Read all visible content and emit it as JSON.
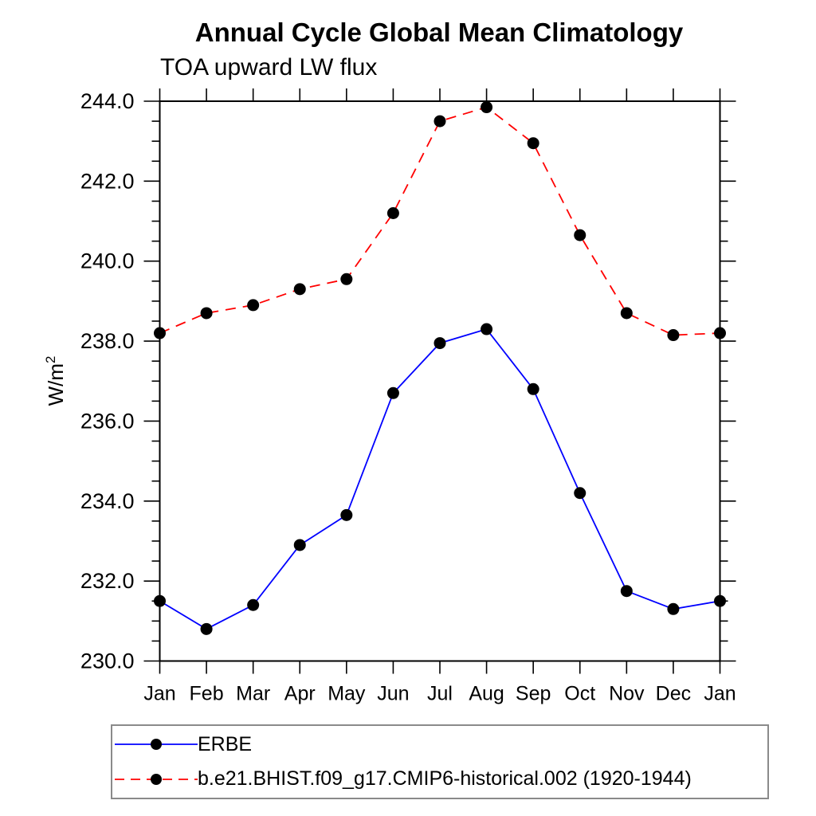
{
  "chart_data": {
    "type": "line",
    "title": "Annual Cycle Global Mean Climatology",
    "subtitle": "TOA upward LW flux",
    "ylabel_base": "W/m",
    "ylabel_sup": "2",
    "categories": [
      "Jan",
      "Feb",
      "Mar",
      "Apr",
      "May",
      "Jun",
      "Jul",
      "Aug",
      "Sep",
      "Oct",
      "Nov",
      "Dec",
      "Jan"
    ],
    "ylim": [
      230.0,
      244.0
    ],
    "ytick_major_values": [
      230.0,
      232.0,
      234.0,
      236.0,
      238.0,
      240.0,
      242.0,
      244.0
    ],
    "ytick_major_labels": [
      "230.0",
      "232.0",
      "234.0",
      "236.0",
      "238.0",
      "240.0",
      "242.0",
      "244.0"
    ],
    "ytick_minor_step": 0.5,
    "grid": false,
    "legend_position": "bottom-left",
    "axis_color": "#000000",
    "marker_color": "#000000",
    "series": [
      {
        "name": "ERBE",
        "color": "#0000ff",
        "line_style": "solid",
        "marker": "filled-circle",
        "values": [
          231.5,
          230.8,
          231.4,
          232.9,
          233.65,
          236.7,
          237.95,
          238.3,
          236.8,
          234.2,
          231.75,
          231.3,
          231.5
        ]
      },
      {
        "name": "b.e21.BHIST.f09_g17.CMIP6-historical.002 (1920-1944)",
        "color": "#ff0000",
        "line_style": "dashed",
        "marker": "filled-circle",
        "values": [
          238.2,
          238.7,
          238.9,
          239.3,
          239.55,
          241.2,
          243.5,
          243.85,
          242.95,
          240.65,
          238.7,
          238.15,
          238.2
        ]
      }
    ]
  }
}
